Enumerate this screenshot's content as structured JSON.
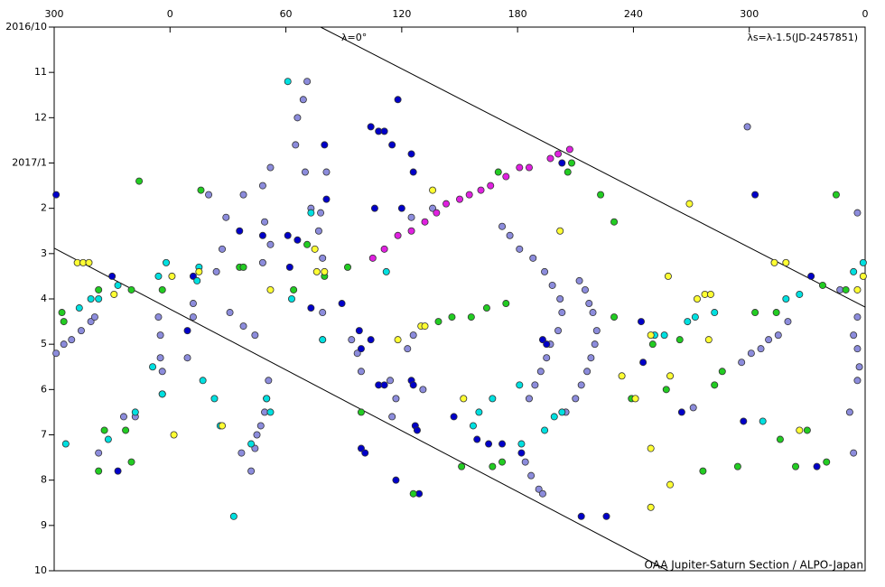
{
  "chart_data": {
    "type": "scatter",
    "lambda_label": "λ=0°",
    "formula": "λs=λ-1.5(JD-2457851)",
    "source": "OAA Jupiter-Saturn Section / ALPO-Japan",
    "xlim": [
      -60,
      360
    ],
    "xticks": [
      {
        "value": -60,
        "label": "300"
      },
      0,
      60,
      120,
      180,
      240,
      300,
      {
        "value": 360,
        "label": "0"
      }
    ],
    "ylim": [
      0,
      12
    ],
    "y_inverted": true,
    "yticks": [
      {
        "value": 0,
        "label": "2016/10"
      },
      {
        "value": 1,
        "label": "11"
      },
      {
        "value": 2,
        "label": "12"
      },
      {
        "value": 3,
        "label": "2017/1"
      },
      {
        "value": 4,
        "label": "2"
      },
      {
        "value": 5,
        "label": "3"
      },
      {
        "value": 6,
        "label": "4"
      },
      {
        "value": 7,
        "label": "5"
      },
      {
        "value": 8,
        "label": "6"
      },
      {
        "value": 9,
        "label": "7"
      },
      {
        "value": 10,
        "label": "8"
      },
      {
        "value": 11,
        "label": "9"
      },
      {
        "value": 12,
        "label": "10"
      }
    ],
    "grid": false,
    "reference_lines": [
      {
        "x": [
          78,
          360
        ],
        "y": [
          0,
          6.18
        ]
      },
      {
        "x": [
          -60,
          258
        ],
        "y": [
          4.88,
          12
        ]
      }
    ],
    "series": [
      {
        "color": "#8c8cdc",
        "x": [
          -59,
          -55,
          -51,
          -46,
          -41,
          -39,
          -6,
          -5,
          -5,
          -4,
          -4,
          12,
          12,
          9,
          20,
          29,
          27,
          24,
          38,
          48,
          52,
          49,
          52,
          48,
          31,
          38,
          44,
          51,
          50,
          49,
          47,
          45,
          44,
          37,
          42,
          71,
          69,
          66,
          65,
          70,
          73,
          77,
          79,
          79,
          79,
          81,
          78,
          94,
          97,
          99,
          114,
          117,
          115,
          123,
          126,
          131,
          136,
          125,
          172,
          176,
          181,
          188,
          194,
          198,
          202,
          203,
          201,
          197,
          195,
          192,
          189,
          186,
          212,
          215,
          217,
          219,
          221,
          220,
          218,
          216,
          213,
          210,
          205,
          184,
          187,
          191,
          193,
          271,
          296,
          301,
          306,
          310,
          315,
          320,
          356,
          354,
          356,
          357,
          356,
          352,
          354,
          299,
          356,
          347,
          -18,
          -24,
          -37
        ],
        "y": [
          7.2,
          7.0,
          6.9,
          6.7,
          6.5,
          6.4,
          6.4,
          6.8,
          7.3,
          7.6,
          8.1,
          6.1,
          6.4,
          7.3,
          3.7,
          4.2,
          4.9,
          5.4,
          3.7,
          3.5,
          3.1,
          4.3,
          4.8,
          5.2,
          6.3,
          6.6,
          6.8,
          7.8,
          8.2,
          8.5,
          8.8,
          9.0,
          9.3,
          9.4,
          9.8,
          1.2,
          1.6,
          2.0,
          2.6,
          3.2,
          4.0,
          4.5,
          5.1,
          6.3,
          6.9,
          3.2,
          4.1,
          6.9,
          7.2,
          7.6,
          7.8,
          8.2,
          8.6,
          7.1,
          6.8,
          8.0,
          4.0,
          4.2,
          4.4,
          4.6,
          4.9,
          5.1,
          5.4,
          5.7,
          6.0,
          6.3,
          6.7,
          7.0,
          7.3,
          7.6,
          7.9,
          8.2,
          5.6,
          5.8,
          6.1,
          6.3,
          6.7,
          7.0,
          7.3,
          7.6,
          7.9,
          8.2,
          8.5,
          9.6,
          9.9,
          10.2,
          10.3,
          8.4,
          7.4,
          7.2,
          7.1,
          6.9,
          6.8,
          6.5,
          6.4,
          6.8,
          7.1,
          7.5,
          7.8,
          8.5,
          9.4,
          2.2,
          4.1,
          5.8,
          8.6,
          8.6,
          9.4
        ]
      },
      {
        "color": "#0000c8",
        "x": [
          -59,
          -30,
          12,
          9,
          36,
          48,
          61,
          66,
          62,
          73,
          80,
          81,
          104,
          108,
          111,
          115,
          125,
          126,
          118,
          106,
          120,
          89,
          98,
          104,
          99,
          108,
          111,
          125,
          126,
          127,
          128,
          117,
          99,
          101,
          147,
          159,
          165,
          172,
          182,
          193,
          195,
          203,
          213,
          226,
          244,
          245,
          265,
          297,
          303,
          332,
          335,
          -27,
          129
        ],
        "y": [
          3.7,
          5.5,
          5.5,
          6.7,
          4.5,
          4.6,
          4.6,
          4.7,
          5.3,
          6.2,
          2.6,
          3.8,
          2.2,
          2.3,
          2.3,
          2.6,
          2.8,
          3.2,
          1.6,
          4.0,
          4.0,
          6.1,
          6.7,
          6.9,
          7.1,
          7.9,
          7.9,
          7.8,
          7.9,
          8.8,
          8.9,
          10.0,
          9.3,
          9.4,
          8.6,
          9.1,
          9.2,
          9.2,
          9.4,
          6.9,
          7.0,
          3.0,
          10.8,
          10.8,
          6.5,
          7.4,
          8.5,
          8.7,
          3.7,
          5.5,
          9.7,
          9.8,
          10.3
        ]
      },
      {
        "color": "#00e0e0",
        "x": [
          -54,
          -47,
          -41,
          -37,
          -27,
          -32,
          -18,
          -9,
          -4,
          -2,
          -6,
          15,
          14,
          17,
          23,
          26,
          33,
          42,
          50,
          52,
          61,
          63,
          73,
          79,
          112,
          157,
          160,
          167,
          182,
          181,
          194,
          203,
          199,
          256,
          268,
          272,
          282,
          307,
          319,
          326,
          354,
          359,
          251
        ],
        "y": [
          9.2,
          6.2,
          6.0,
          6.0,
          5.7,
          9.1,
          8.5,
          7.5,
          8.1,
          5.2,
          5.5,
          5.3,
          5.6,
          7.8,
          8.2,
          8.8,
          10.8,
          9.2,
          8.2,
          8.5,
          1.2,
          6.0,
          4.1,
          6.9,
          5.4,
          8.8,
          8.5,
          8.2,
          9.2,
          7.9,
          8.9,
          8.5,
          8.6,
          6.8,
          6.5,
          6.4,
          6.3,
          8.7,
          6.0,
          5.9,
          5.4,
          5.2,
          6.8
        ]
      },
      {
        "color": "#22cc22",
        "x": [
          -16,
          -56,
          -55,
          -37,
          -20,
          -4,
          -37,
          -34,
          -23,
          -20,
          16,
          36,
          38,
          64,
          71,
          92,
          80,
          99,
          139,
          146,
          156,
          164,
          174,
          126,
          151,
          172,
          167,
          170,
          208,
          206,
          223,
          230,
          230,
          239,
          250,
          257,
          264,
          276,
          282,
          286,
          294,
          303,
          314,
          316,
          324,
          330,
          338,
          345,
          350,
          340
        ],
        "y": [
          3.4,
          6.3,
          6.5,
          5.8,
          5.8,
          5.8,
          9.8,
          8.9,
          8.9,
          9.6,
          3.6,
          5.3,
          5.3,
          5.8,
          4.8,
          5.3,
          5.5,
          8.5,
          6.5,
          6.4,
          6.4,
          6.2,
          6.1,
          10.3,
          9.7,
          9.6,
          9.7,
          3.2,
          3.0,
          3.2,
          3.7,
          4.3,
          6.4,
          8.2,
          7.0,
          8.0,
          6.9,
          9.8,
          7.9,
          7.6,
          9.7,
          6.3,
          6.3,
          9.1,
          9.7,
          8.9,
          5.7,
          3.7,
          5.8,
          9.6
        ]
      },
      {
        "color": "#ffff33",
        "x": [
          -48,
          -45,
          -42,
          -29,
          1,
          15,
          27,
          2,
          52,
          75,
          76,
          80,
          118,
          130,
          132,
          136,
          152,
          202,
          234,
          241,
          249,
          249,
          259,
          258,
          259,
          269,
          249,
          273,
          277,
          280,
          279,
          313,
          319,
          359,
          356,
          326
        ],
        "y": [
          5.2,
          5.2,
          5.2,
          5.9,
          5.5,
          5.4,
          8.8,
          9.0,
          5.8,
          4.9,
          5.4,
          5.4,
          6.9,
          6.6,
          6.6,
          3.6,
          8.2,
          4.5,
          7.7,
          8.2,
          9.3,
          10.6,
          10.1,
          5.5,
          7.7,
          3.9,
          6.8,
          6.0,
          5.9,
          5.9,
          6.9,
          5.2,
          5.2,
          5.5,
          5.8,
          8.9
        ]
      },
      {
        "color": "#e020e0",
        "x": [
          105,
          111,
          118,
          125,
          132,
          138,
          143,
          150,
          155,
          161,
          166,
          174,
          181,
          186,
          197,
          201,
          207
        ],
        "y": [
          5.1,
          4.9,
          4.6,
          4.5,
          4.3,
          4.1,
          3.9,
          3.8,
          3.7,
          3.6,
          3.5,
          3.3,
          3.1,
          3.1,
          2.9,
          2.8,
          2.7
        ]
      }
    ]
  }
}
